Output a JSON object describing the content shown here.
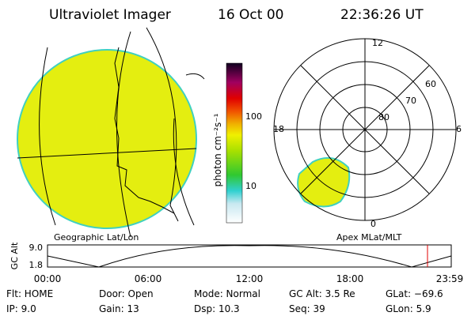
{
  "header": {
    "title": "Ultraviolet Imager",
    "date": "16 Oct 00",
    "time": "22:36:26 UT"
  },
  "colorbar": {
    "label": "photon cm⁻²s⁻¹",
    "ticks": [
      "100",
      "10"
    ]
  },
  "left_panel": {
    "caption": "Geographic Lat/Lon"
  },
  "right_panel": {
    "caption": "Apex MLat/MLT",
    "mlt_labels": [
      "12",
      "18",
      "6",
      "0"
    ],
    "lat_labels": [
      "60",
      "70",
      "80"
    ]
  },
  "orbit": {
    "axis_label": "GC Alt",
    "y_labels": [
      "9.0",
      "1.8"
    ],
    "x_labels": [
      "00:00",
      "06:00",
      "12:00",
      "18:00",
      "23:59"
    ]
  },
  "status": {
    "rows": [
      [
        "Flt: HOME",
        "Door: Open",
        "Mode: Normal",
        "GC Alt: 3.5 Re",
        "GLat: −69.6"
      ],
      [
        "IP: 9.0",
        "Gain: 13",
        "Dsp: 10.3",
        "Seq: 39",
        "GLon: 5.9"
      ]
    ]
  }
}
